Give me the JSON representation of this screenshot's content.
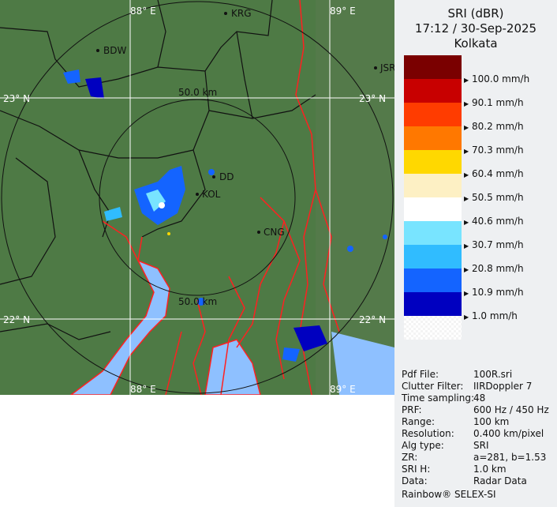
{
  "header": {
    "product": "SRI (dBR)",
    "datetime": "17:12 / 30-Sep-2025",
    "site": "Kolkata"
  },
  "legend": [
    {
      "color": "#7a0000",
      "label": ""
    },
    {
      "color": "#c80000",
      "label": "100.0 mm/h"
    },
    {
      "color": "#ff3c00",
      "label": "90.1 mm/h"
    },
    {
      "color": "#ff7800",
      "label": "80.2 mm/h"
    },
    {
      "color": "#ffd800",
      "label": "70.3 mm/h"
    },
    {
      "color": "#fdf0c4",
      "label": "60.4 mm/h"
    },
    {
      "color": "#ffffff",
      "label": "50.5 mm/h"
    },
    {
      "color": "#78e4ff",
      "label": "40.6 mm/h"
    },
    {
      "color": "#30bcff",
      "label": "30.7 mm/h"
    },
    {
      "color": "#1464ff",
      "label": "20.8 mm/h"
    },
    {
      "color": "#0000c0",
      "label": "10.9 mm/h"
    },
    {
      "color": "transparent",
      "label": "1.0 mm/h"
    }
  ],
  "info": [
    {
      "k": "Pdf File:",
      "v": "100R.sri"
    },
    {
      "k": "Clutter Filter:",
      "v": "IIRDoppler 7"
    },
    {
      "k": "Time sampling:",
      "v": "48"
    },
    {
      "k": "PRF:",
      "v": "600 Hz / 450 Hz"
    },
    {
      "k": "Range:",
      "v": "100 km"
    },
    {
      "k": "Resolution:",
      "v": "0.400 km/pixel"
    },
    {
      "k": "Alg type:",
      "v": "SRI"
    },
    {
      "k": "ZR:",
      "v": "a=281, b=1.53"
    },
    {
      "k": "SRI H:",
      "v": "1.0 km"
    },
    {
      "k": "Data:",
      "v": "Radar Data"
    }
  ],
  "footer": "Rainbow® SELEX-SI",
  "map": {
    "grid": {
      "lon1": "88° E",
      "lon2": "89° E",
      "lat1": "23° N",
      "lat2": "22° N"
    },
    "rings": {
      "inner": "50.0 km"
    },
    "cities": {
      "bdw": "BDW",
      "krg": "KRG",
      "jsr": "JSR",
      "dd": "DD",
      "kol": "KOL",
      "cng": "CNG"
    },
    "colors": {
      "land": "#4e7a45",
      "river": "#ff2020",
      "water": "#8ec0ff",
      "border": "#111111"
    }
  }
}
